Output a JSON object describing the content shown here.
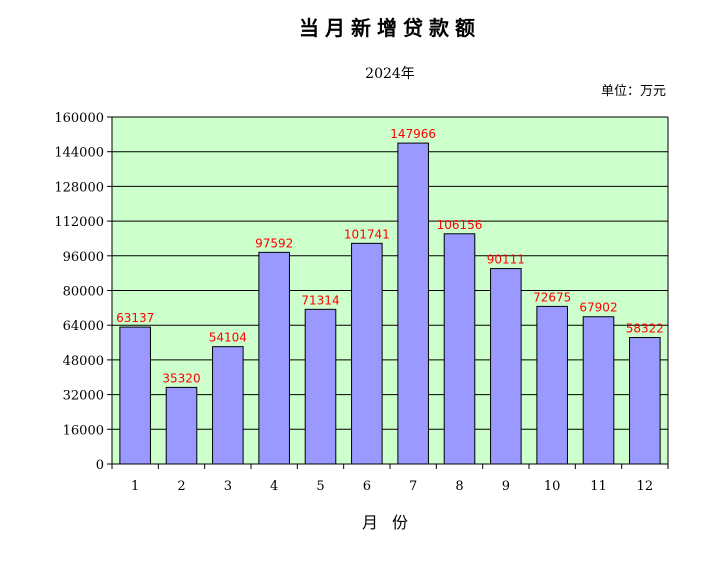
{
  "chart_data": {
    "type": "bar",
    "title": "当月新增贷款额",
    "subtitle": "2024年",
    "unit": "单位：万元",
    "xlabel": "月份",
    "ylabel": "",
    "categories": [
      "1",
      "2",
      "3",
      "4",
      "5",
      "6",
      "7",
      "8",
      "9",
      "10",
      "11",
      "12"
    ],
    "values": [
      63137,
      35320,
      54104,
      97592,
      71314,
      101741,
      147966,
      106156,
      90111,
      72675,
      67902,
      58322
    ],
    "ylim": [
      0,
      160000
    ],
    "yticks": [
      0,
      16000,
      32000,
      48000,
      64000,
      80000,
      96000,
      112000,
      128000,
      144000,
      160000
    ],
    "grid": true,
    "colors": {
      "plot_bg": "#ccffcc",
      "bar": "#9999ff",
      "label": "#ff0000",
      "axis": "#000000"
    }
  }
}
